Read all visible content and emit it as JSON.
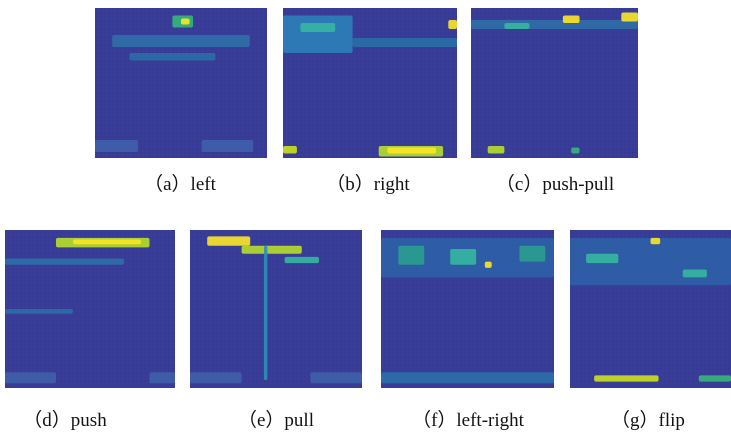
{
  "figure": {
    "panels": [
      {
        "caption": "（a）left"
      },
      {
        "caption": "（b）right"
      },
      {
        "caption": "（c）push-pull"
      },
      {
        "caption": "（d）push"
      },
      {
        "caption": "（e）pull"
      },
      {
        "caption": "（f）left-right"
      },
      {
        "caption": "（g）flip"
      }
    ]
  }
}
